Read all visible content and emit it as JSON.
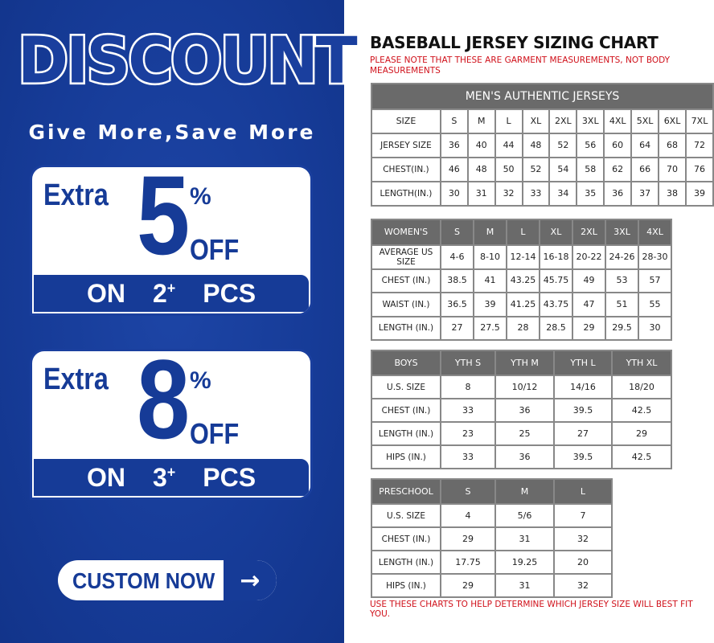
{
  "promo": {
    "headline": "DISCOUNT",
    "slogan": "Give More,Save More",
    "offers": [
      {
        "extra": "Extra",
        "value": "5",
        "percent": "%",
        "off": "OFF",
        "on": "ON",
        "qty": "2",
        "plus": "+",
        "pcs": "PCS"
      },
      {
        "extra": "Extra",
        "value": "8",
        "percent": "%",
        "off": "OFF",
        "on": "ON",
        "qty": "3",
        "plus": "+",
        "pcs": "PCS"
      }
    ],
    "cta": {
      "label": "CUSTOM NOW",
      "icon": "arrow-right-icon",
      "arrow": "→"
    },
    "colors": {
      "brand_blue": "#163b97",
      "note_red": "#d0101a",
      "header_gray": "#6a6a6a"
    }
  },
  "chart": {
    "title": "BASEBALL JERSEY SIZING CHART",
    "note": "PLEASE NOTE THAT THESE ARE GARMENT MEASUREMENTS, NOT BODY MEASUREMENTS",
    "footer": "USE THESE CHARTS TO HELP DETERMINE WHICH JERSEY SIZE WILL BEST FIT YOU.",
    "tables": [
      {
        "caption": "MEN'S AUTHENTIC JERSEYS",
        "header_in_body": true,
        "columns": [
          "SIZE",
          "S",
          "M",
          "L",
          "XL",
          "2XL",
          "3XL",
          "4XL",
          "5XL",
          "6XL",
          "7XL"
        ],
        "rows": [
          [
            "JERSEY SIZE",
            "36",
            "40",
            "44",
            "48",
            "52",
            "56",
            "60",
            "64",
            "68",
            "72"
          ],
          [
            "CHEST(IN.)",
            "46",
            "48",
            "50",
            "52",
            "54",
            "58",
            "62",
            "66",
            "70",
            "76"
          ],
          [
            "LENGTH(IN.)",
            "30",
            "31",
            "32",
            "33",
            "34",
            "35",
            "36",
            "37",
            "38",
            "39"
          ]
        ]
      },
      {
        "columns": [
          "WOMEN'S",
          "S",
          "M",
          "L",
          "XL",
          "2XL",
          "3XL",
          "4XL"
        ],
        "rows": [
          [
            "AVERAGE US SIZE",
            "4-6",
            "8-10",
            "12-14",
            "16-18",
            "20-22",
            "24-26",
            "28-30"
          ],
          [
            "CHEST (IN.)",
            "38.5",
            "41",
            "43.25",
            "45.75",
            "49",
            "53",
            "57"
          ],
          [
            "WAIST (IN.)",
            "36.5",
            "39",
            "41.25",
            "43.75",
            "47",
            "51",
            "55"
          ],
          [
            "LENGTH (IN.)",
            "27",
            "27.5",
            "28",
            "28.5",
            "29",
            "29.5",
            "30"
          ]
        ]
      },
      {
        "columns": [
          "BOYS",
          "YTH S",
          "YTH M",
          "YTH L",
          "YTH XL"
        ],
        "rows": [
          [
            "U.S. SIZE",
            "8",
            "10/12",
            "14/16",
            "18/20"
          ],
          [
            "CHEST (IN.)",
            "33",
            "36",
            "39.5",
            "42.5"
          ],
          [
            "LENGTH (IN.)",
            "23",
            "25",
            "27",
            "29"
          ],
          [
            "HIPS (IN.)",
            "33",
            "36",
            "39.5",
            "42.5"
          ]
        ]
      },
      {
        "columns": [
          "PRESCHOOL",
          "S",
          "M",
          "L"
        ],
        "rows": [
          [
            "U.S. SIZE",
            "4",
            "5/6",
            "7"
          ],
          [
            "CHEST (IN.)",
            "29",
            "31",
            "32"
          ],
          [
            "LENGTH (IN.)",
            "17.75",
            "19.25",
            "20"
          ],
          [
            "HIPS (IN.)",
            "29",
            "31",
            "32"
          ]
        ]
      }
    ]
  }
}
